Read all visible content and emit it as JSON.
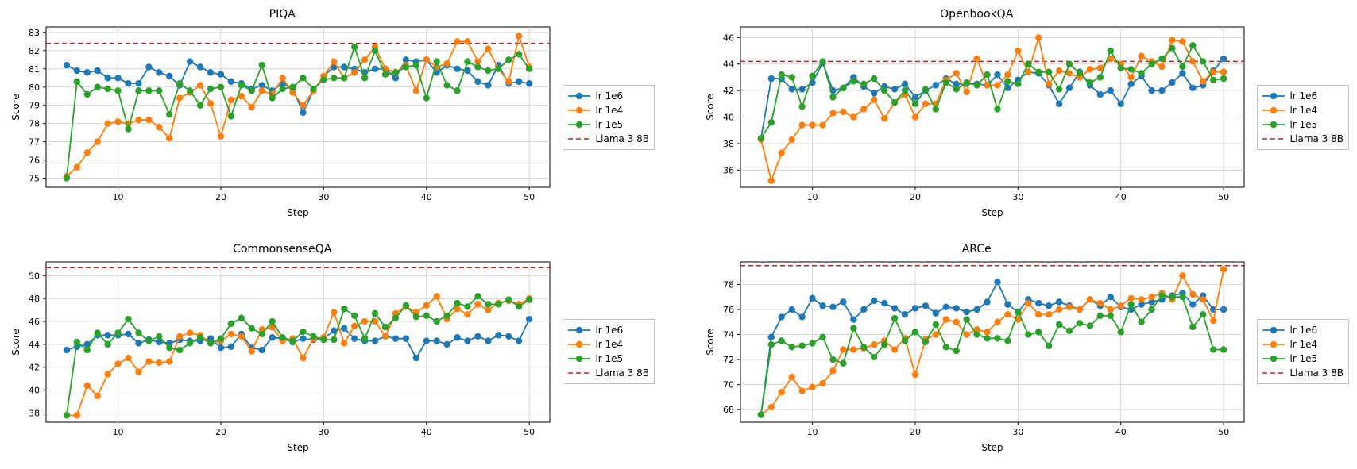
{
  "global": {
    "background_color": "#ffffff",
    "grid_color": "#cccccc",
    "axis_color": "#000000",
    "font_family": "DejaVu Sans",
    "title_fontsize": 14,
    "tick_fontsize": 11,
    "label_fontsize": 12,
    "line_width": 1.8,
    "marker_size": 4.2,
    "baseline_dash": "6,4",
    "baseline_width": 1.5,
    "xlabel": "Step",
    "ylabel": "Score",
    "x_values": [
      5,
      6,
      7,
      8,
      9,
      10,
      11,
      12,
      13,
      14,
      15,
      16,
      17,
      18,
      19,
      20,
      21,
      22,
      23,
      24,
      25,
      26,
      27,
      28,
      29,
      30,
      31,
      32,
      33,
      34,
      35,
      36,
      37,
      38,
      39,
      40,
      41,
      42,
      43,
      44,
      45,
      46,
      47,
      48,
      49,
      50
    ],
    "xlim": [
      3,
      52
    ],
    "xticks": [
      10,
      20,
      30,
      40,
      50
    ],
    "legend": {
      "items": [
        {
          "label": "lr 1e6",
          "type": "line",
          "color": "#1f77b4",
          "marker": true
        },
        {
          "label": "lr 1e4",
          "type": "line",
          "color": "#ff7f0e",
          "marker": true
        },
        {
          "label": "lr 1e5",
          "type": "line",
          "color": "#2ca02c",
          "marker": true
        },
        {
          "label": "Llama 3 8B",
          "type": "dash",
          "color": "#b22222",
          "marker": false
        }
      ]
    }
  },
  "panels": [
    {
      "id": "piqa",
      "title": "PIQA",
      "ylim": [
        74.5,
        83.3
      ],
      "yticks": [
        75,
        76,
        77,
        78,
        79,
        80,
        81,
        82,
        83
      ],
      "baseline": 82.4,
      "series": {
        "lr1e6": [
          81.2,
          80.9,
          80.8,
          80.9,
          80.5,
          80.5,
          80.2,
          80.2,
          81.1,
          80.8,
          80.6,
          80.1,
          81.4,
          81.1,
          80.8,
          80.7,
          80.3,
          80.2,
          79.9,
          80.1,
          79.8,
          80.2,
          79.9,
          78.6,
          79.8,
          80.6,
          81.1,
          81.1,
          81.0,
          80.8,
          81.0,
          81.0,
          80.5,
          81.5,
          81.4,
          81.5,
          80.8,
          81.2,
          81.0,
          80.9,
          80.3,
          80.1,
          81.2,
          80.2,
          80.3,
          80.2
        ],
        "lr1e4": [
          75.1,
          75.6,
          76.4,
          77.0,
          78.0,
          78.1,
          78.0,
          78.2,
          78.2,
          77.8,
          77.2,
          79.4,
          79.7,
          80.1,
          79.1,
          77.3,
          79.3,
          79.5,
          78.9,
          79.8,
          79.6,
          80.5,
          79.7,
          79.0,
          79.8,
          80.6,
          81.4,
          80.5,
          80.8,
          81.5,
          82.2,
          81.0,
          80.8,
          81.2,
          79.8,
          81.5,
          81.1,
          81.3,
          82.5,
          82.5,
          81.4,
          82.1,
          81.0,
          80.3,
          82.8,
          81.1
        ],
        "lr1e5": [
          75.0,
          80.3,
          79.6,
          80.0,
          79.9,
          79.8,
          77.7,
          79.8,
          79.8,
          79.8,
          78.5,
          80.2,
          79.8,
          79.0,
          79.9,
          80.0,
          78.4,
          80.1,
          79.8,
          81.2,
          79.4,
          79.9,
          80.0,
          80.5,
          79.9,
          80.4,
          80.5,
          80.5,
          82.2,
          80.5,
          82.0,
          80.7,
          80.8,
          81.1,
          81.2,
          79.4,
          81.4,
          80.1,
          79.8,
          81.4,
          81.1,
          80.9,
          81.0,
          81.5,
          81.8,
          81.0
        ]
      }
    },
    {
      "id": "openbookqa",
      "title": "OpenbookQA",
      "ylim": [
        34.7,
        46.8
      ],
      "yticks": [
        36,
        38,
        40,
        42,
        44,
        46
      ],
      "baseline": 44.2,
      "series": {
        "lr1e6": [
          38.4,
          42.9,
          42.9,
          42.1,
          42.1,
          42.6,
          44.1,
          42.0,
          42.2,
          43.0,
          42.3,
          41.8,
          42.3,
          42.1,
          42.5,
          41.5,
          42.0,
          42.4,
          42.9,
          42.5,
          42.5,
          42.5,
          42.4,
          43.2,
          42.2,
          42.8,
          43.4,
          43.3,
          42.4,
          41.0,
          42.2,
          43.4,
          42.4,
          41.7,
          42.0,
          41.0,
          42.5,
          43.1,
          42.0,
          42.0,
          42.6,
          43.3,
          42.2,
          42.4,
          43.5,
          44.4
        ],
        "lr1e4": [
          38.3,
          35.2,
          37.3,
          38.3,
          39.4,
          39.4,
          39.4,
          40.3,
          40.4,
          40.0,
          40.6,
          41.3,
          39.9,
          41.1,
          41.7,
          40.0,
          41.0,
          41.0,
          42.8,
          43.3,
          41.9,
          44.4,
          42.4,
          42.4,
          43.2,
          45.0,
          43.4,
          46.0,
          42.5,
          43.5,
          43.3,
          43.0,
          43.6,
          43.7,
          44.4,
          44.0,
          43.0,
          44.6,
          44.2,
          43.8,
          45.8,
          45.7,
          44.2,
          42.7,
          43.4,
          43.4
        ],
        "lr1e5": [
          38.4,
          39.6,
          43.2,
          43.0,
          40.8,
          43.1,
          44.2,
          41.5,
          42.2,
          42.7,
          42.5,
          42.9,
          42.0,
          41.1,
          42.0,
          41.0,
          42.1,
          40.6,
          42.6,
          42.1,
          42.6,
          42.4,
          43.2,
          40.6,
          42.7,
          42.5,
          44.0,
          43.4,
          43.4,
          42.1,
          44.0,
          43.3,
          42.6,
          43.0,
          45.0,
          43.7,
          43.6,
          43.3,
          44.0,
          44.4,
          45.2,
          43.8,
          45.4,
          44.2,
          42.8,
          42.9
        ]
      }
    },
    {
      "id": "commonsenseqa",
      "title": "CommonsenseQA",
      "ylim": [
        37.2,
        51.2
      ],
      "yticks": [
        38,
        40,
        42,
        44,
        46,
        48,
        50
      ],
      "baseline": 50.7,
      "series": {
        "lr1e6": [
          43.5,
          43.8,
          44.0,
          44.8,
          44.8,
          44.8,
          44.9,
          44.1,
          44.4,
          44.2,
          44.1,
          44.4,
          44.3,
          44.3,
          44.5,
          43.7,
          43.8,
          44.9,
          43.7,
          43.5,
          44.6,
          44.5,
          44.2,
          44.5,
          44.4,
          44.5,
          45.2,
          45.4,
          44.5,
          44.3,
          44.3,
          44.7,
          44.5,
          44.5,
          42.8,
          44.3,
          44.3,
          44.0,
          44.6,
          44.3,
          44.7,
          44.3,
          44.8,
          44.7,
          44.3,
          46.2
        ],
        "lr1e4": [
          37.8,
          37.8,
          40.4,
          39.5,
          41.4,
          42.3,
          42.8,
          41.6,
          42.5,
          42.4,
          42.5,
          44.7,
          45.0,
          44.8,
          44.1,
          44.3,
          44.9,
          44.7,
          43.4,
          45.3,
          45.5,
          44.3,
          44.5,
          42.8,
          44.5,
          44.6,
          46.8,
          44.1,
          45.6,
          46.0,
          46.0,
          44.7,
          46.7,
          47.3,
          46.8,
          47.4,
          48.2,
          46.2,
          47.1,
          46.6,
          47.5,
          47.0,
          47.6,
          47.8,
          47.5,
          48.0
        ],
        "lr1e5": [
          37.8,
          44.2,
          43.5,
          45.0,
          44.0,
          45.0,
          46.2,
          45.0,
          44.3,
          44.7,
          43.7,
          43.5,
          44.1,
          44.6,
          44.1,
          44.5,
          45.8,
          46.3,
          45.4,
          44.9,
          46.0,
          44.6,
          44.3,
          45.1,
          44.7,
          44.4,
          44.4,
          47.1,
          46.5,
          44.5,
          46.7,
          45.5,
          46.3,
          47.4,
          46.4,
          46.5,
          46.0,
          46.5,
          47.6,
          47.3,
          48.2,
          47.5,
          47.5,
          47.9,
          47.3,
          47.9
        ]
      }
    },
    {
      "id": "arce",
      "title": "ARCe",
      "ylim": [
        67.0,
        79.8
      ],
      "yticks": [
        68,
        70,
        72,
        74,
        76,
        78
      ],
      "baseline": 79.5,
      "series": {
        "lr1e6": [
          67.6,
          73.8,
          75.4,
          76.0,
          75.4,
          76.9,
          76.3,
          76.2,
          76.6,
          75.2,
          76.0,
          76.7,
          76.5,
          76.1,
          75.6,
          76.1,
          76.3,
          75.7,
          76.2,
          76.1,
          75.8,
          76.0,
          76.6,
          78.2,
          76.4,
          75.8,
          76.8,
          76.5,
          76.3,
          76.6,
          76.3,
          76.0,
          76.8,
          76.3,
          77.0,
          76.2,
          76.0,
          76.4,
          76.6,
          76.8,
          77.1,
          77.3,
          76.4,
          77.1,
          76.0,
          76.0
        ],
        "lr1e4": [
          67.6,
          68.2,
          69.4,
          70.6,
          69.5,
          69.8,
          70.1,
          71.1,
          72.8,
          72.8,
          72.9,
          73.2,
          73.5,
          72.8,
          73.7,
          70.8,
          73.6,
          74.0,
          75.2,
          75.0,
          74.0,
          74.4,
          74.2,
          75.0,
          75.6,
          75.2,
          76.5,
          75.6,
          75.6,
          76.0,
          76.2,
          76.0,
          76.8,
          76.5,
          76.0,
          76.3,
          76.9,
          76.8,
          77.0,
          77.3,
          76.8,
          78.7,
          77.2,
          76.8,
          75.1,
          79.2
        ],
        "lr1e5": [
          67.6,
          73.2,
          73.5,
          73.0,
          73.1,
          73.3,
          73.8,
          72.0,
          71.7,
          74.5,
          73.0,
          72.2,
          73.2,
          75.3,
          73.5,
          74.2,
          73.4,
          74.8,
          73.0,
          72.7,
          75.2,
          74.0,
          73.7,
          73.7,
          73.5,
          75.8,
          74.0,
          74.2,
          73.1,
          74.8,
          74.3,
          74.9,
          74.7,
          75.5,
          75.5,
          74.2,
          76.4,
          75.0,
          76.0,
          77.1,
          77.0,
          77.0,
          74.6,
          75.6,
          72.8,
          72.8
        ]
      }
    }
  ]
}
